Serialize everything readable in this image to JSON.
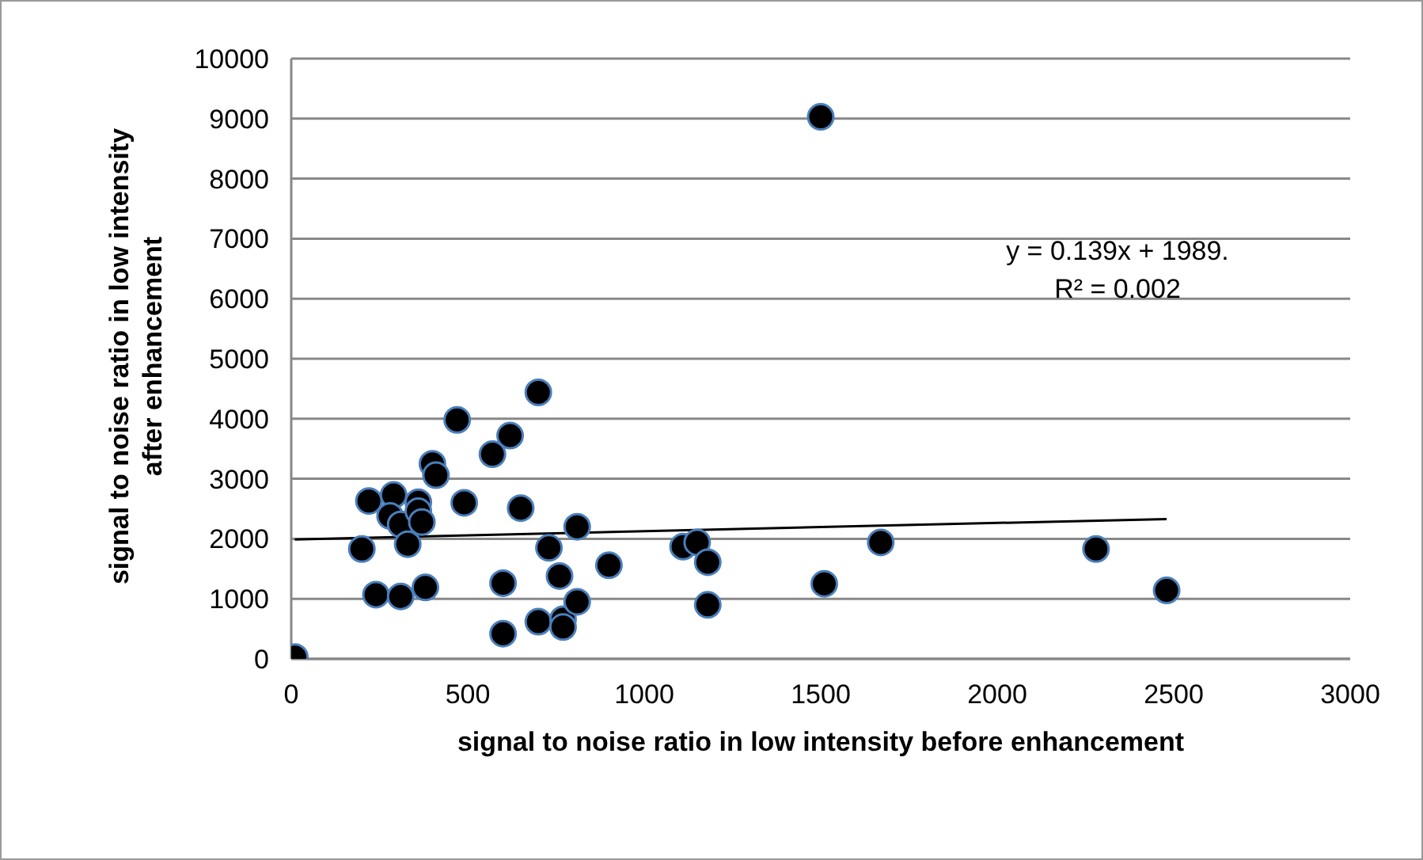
{
  "chart_data": {
    "type": "scatter",
    "xlabel": "signal to noise ratio in low intensity before enhancement",
    "ylabel": "signal to noise ratio in low intensity\nafter enhancement",
    "xlim": [
      0,
      3000
    ],
    "xticks": [
      0,
      500,
      1000,
      1500,
      2000,
      2500,
      3000
    ],
    "ylim": [
      0,
      10000
    ],
    "yticks": [
      0,
      1000,
      2000,
      3000,
      4000,
      5000,
      6000,
      7000,
      8000,
      9000,
      10000
    ],
    "grid": "y",
    "legend": false,
    "annotations": [
      "y = 0.139x + 1989.",
      "R² = 0.002"
    ],
    "series": [
      {
        "color": "#000000",
        "marker": "circle",
        "x": [
          10,
          200,
          220,
          240,
          290,
          280,
          310,
          310,
          330,
          360,
          360,
          370,
          380,
          400,
          410,
          470,
          490,
          570,
          600,
          600,
          620,
          650,
          700,
          700,
          730,
          760,
          770,
          770,
          810,
          810,
          900,
          1110,
          1150,
          1180,
          1180,
          1510,
          1670,
          2280,
          2480,
          1500
        ],
        "values": [
          30,
          1830,
          2630,
          1070,
          2730,
          2380,
          2240,
          1040,
          1910,
          2610,
          2460,
          2280,
          1190,
          3250,
          3060,
          3980,
          2600,
          3410,
          1260,
          420,
          3720,
          2510,
          4440,
          620,
          1850,
          1380,
          660,
          530,
          2200,
          950,
          1560,
          1870,
          1940,
          1610,
          900,
          1250,
          1940,
          1830,
          1140,
          9030
        ]
      },
      {
        "type": "line",
        "color": "#000000",
        "marker": "none",
        "x": [
          10,
          2480
        ],
        "values": [
          1990,
          2330
        ]
      }
    ]
  }
}
